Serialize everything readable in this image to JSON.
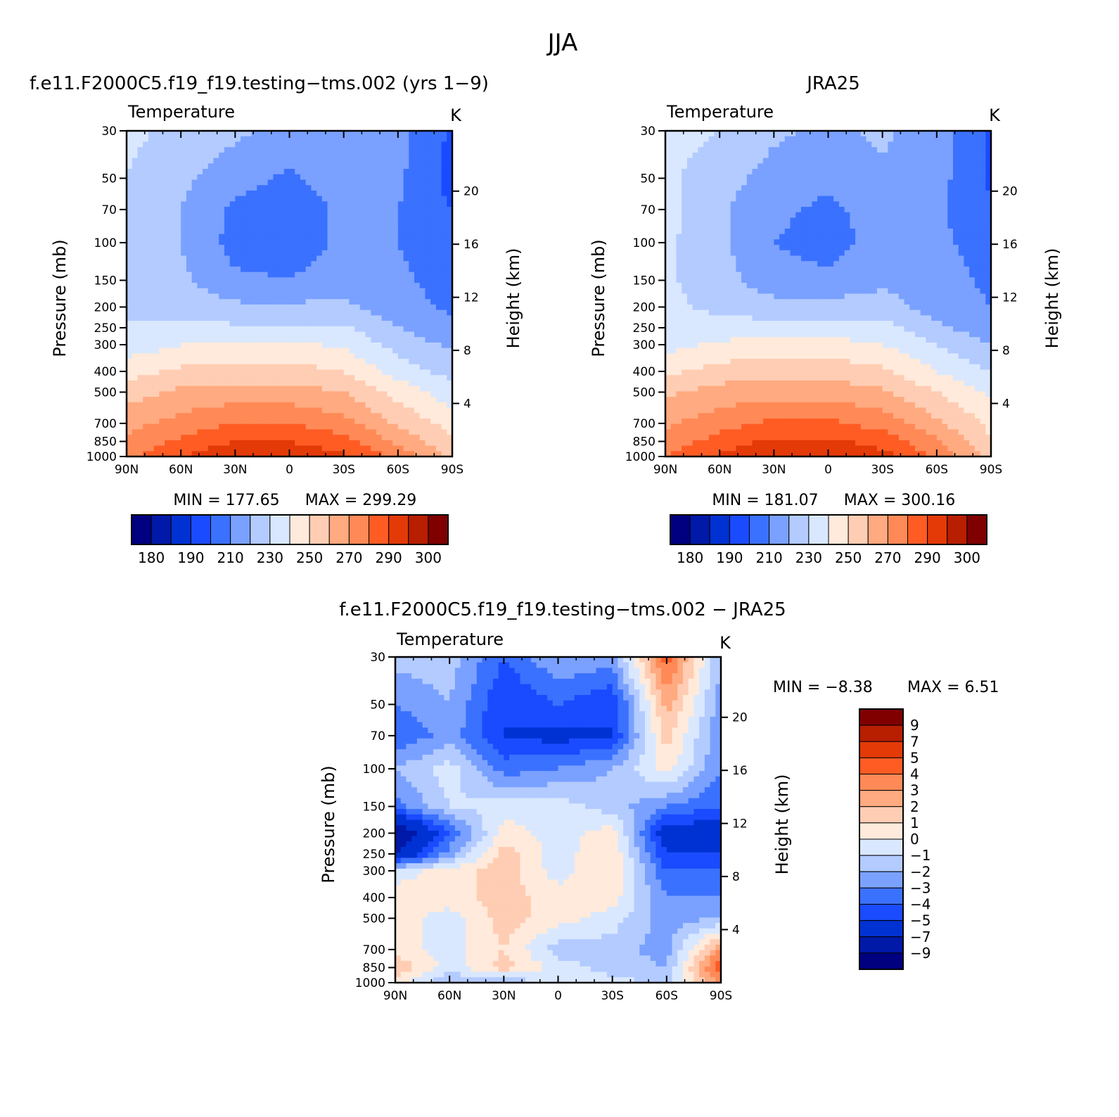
{
  "title": "JJA",
  "colors": {
    "temperature_levels": [
      "#000080",
      "#0019a8",
      "#0032d3",
      "#1a4bff",
      "#3b71ff",
      "#7aa1ff",
      "#b3cbff",
      "#d9e8ff",
      "#ffeadb",
      "#ffcdb3",
      "#ffaa80",
      "#ff8a57",
      "#ff5c24",
      "#e33a08",
      "#b81e00",
      "#800000"
    ],
    "difference_levels": [
      "#000080",
      "#0019a8",
      "#0032d3",
      "#1a4bff",
      "#3b71ff",
      "#7aa1ff",
      "#b3cbff",
      "#d9e8ff",
      "#ffeadb",
      "#ffcdb3",
      "#ffaa80",
      "#ff8a57",
      "#ff5c24",
      "#e33a08",
      "#b81e00",
      "#800000"
    ]
  },
  "chart_data": [
    {
      "type": "heatmap",
      "title": "f.e11.F2000C5.f19_f19.testing−tms.002 (yrs 1−9)",
      "left_string": "Temperature",
      "units": "K",
      "ylabel": "Pressure (mb)",
      "ylabel_right": "Height (km)",
      "x_ticks": [
        "90N",
        "60N",
        "30N",
        "0",
        "30S",
        "60S",
        "90S"
      ],
      "y_ticks": [
        "30",
        "50",
        "70",
        "100",
        "150",
        "200",
        "250",
        "300",
        "400",
        "500",
        "700",
        "850",
        "1000"
      ],
      "y_ticks_right": [
        "20",
        "16",
        "12",
        "8",
        "4"
      ],
      "x": [
        90,
        60,
        30,
        0,
        -30,
        -60,
        -90
      ],
      "y": [
        30,
        50,
        70,
        100,
        150,
        200,
        250,
        300,
        400,
        500,
        700,
        850,
        1000
      ],
      "z": [
        [
          232,
          228,
          222,
          216,
          220,
          214,
          198
        ],
        [
          230,
          222,
          214,
          208,
          216,
          212,
          196
        ],
        [
          230,
          220,
          208,
          204,
          212,
          210,
          200
        ],
        [
          230,
          220,
          206,
          204,
          212,
          210,
          204
        ],
        [
          230,
          222,
          212,
          210,
          216,
          212,
          206
        ],
        [
          230,
          226,
          222,
          222,
          222,
          214,
          208
        ],
        [
          230,
          232,
          232,
          232,
          232,
          220,
          212
        ],
        [
          234,
          240,
          242,
          242,
          238,
          226,
          218
        ],
        [
          246,
          252,
          254,
          254,
          250,
          236,
          226
        ],
        [
          256,
          262,
          264,
          264,
          260,
          246,
          234
        ],
        [
          266,
          274,
          280,
          280,
          274,
          258,
          246
        ],
        [
          272,
          282,
          290,
          290,
          284,
          268,
          252
        ],
        [
          278,
          290,
          298,
          298,
          292,
          276,
          258
        ]
      ],
      "min_label": "MIN = 177.65",
      "max_label": "MAX = 299.29",
      "colorbar_labels": [
        "180",
        "190",
        "210",
        "230",
        "250",
        "270",
        "290",
        "300"
      ]
    },
    {
      "type": "heatmap",
      "title": "JRA25",
      "left_string": "Temperature",
      "units": "K",
      "ylabel": "Pressure (mb)",
      "ylabel_right": "Height (km)",
      "x_ticks": [
        "90N",
        "60N",
        "30N",
        "0",
        "30S",
        "60S",
        "90S"
      ],
      "y_ticks": [
        "30",
        "50",
        "70",
        "100",
        "150",
        "200",
        "250",
        "300",
        "400",
        "500",
        "700",
        "850",
        "1000"
      ],
      "y_ticks_right": [
        "20",
        "16",
        "12",
        "8",
        "4"
      ],
      "x": [
        90,
        60,
        30,
        0,
        -30,
        -60,
        -90
      ],
      "y": [
        30,
        50,
        70,
        100,
        150,
        200,
        250,
        300,
        400,
        500,
        700,
        850,
        1000
      ],
      "z": [
        [
          234,
          230,
          222,
          218,
          222,
          214,
          198
        ],
        [
          232,
          224,
          216,
          212,
          218,
          214,
          198
        ],
        [
          234,
          222,
          212,
          208,
          214,
          212,
          202
        ],
        [
          232,
          222,
          210,
          206,
          214,
          212,
          206
        ],
        [
          232,
          224,
          214,
          212,
          218,
          214,
          208
        ],
        [
          232,
          228,
          224,
          224,
          224,
          216,
          210
        ],
        [
          232,
          234,
          234,
          234,
          234,
          222,
          214
        ],
        [
          236,
          242,
          244,
          244,
          240,
          230,
          220
        ],
        [
          248,
          254,
          256,
          256,
          252,
          240,
          230
        ],
        [
          258,
          264,
          266,
          266,
          262,
          250,
          238
        ],
        [
          268,
          276,
          282,
          282,
          276,
          262,
          248
        ],
        [
          274,
          284,
          292,
          292,
          286,
          272,
          250
        ],
        [
          280,
          292,
          300,
          300,
          294,
          278,
          256
        ]
      ],
      "min_label": "MIN = 181.07",
      "max_label": "MAX = 300.16",
      "colorbar_labels": [
        "180",
        "190",
        "210",
        "230",
        "250",
        "270",
        "290",
        "300"
      ]
    },
    {
      "type": "heatmap",
      "title": "f.e11.F2000C5.f19_f19.testing−tms.002 − JRA25",
      "left_string": "Temperature",
      "units": "K",
      "ylabel": "Pressure (mb)",
      "ylabel_right": "Height (km)",
      "x_ticks": [
        "90N",
        "60N",
        "30N",
        "0",
        "30S",
        "60S",
        "90S"
      ],
      "y_ticks": [
        "30",
        "50",
        "70",
        "100",
        "150",
        "200",
        "250",
        "300",
        "400",
        "500",
        "700",
        "850",
        "1000"
      ],
      "y_ticks_right": [
        "20",
        "16",
        "12",
        "8",
        "4"
      ],
      "x": [
        90,
        60,
        30,
        0,
        -30,
        -60,
        -90
      ],
      "y": [
        30,
        50,
        70,
        100,
        150,
        200,
        250,
        300,
        400,
        500,
        700,
        850,
        1000
      ],
      "z": [
        [
          -1.5,
          -1.5,
          -4,
          -2,
          -2.5,
          4.5,
          -2
        ],
        [
          -3,
          -2,
          -5,
          -4,
          -5,
          2.5,
          -2.5
        ],
        [
          -4,
          -2.5,
          -5,
          -5.5,
          -5,
          1.5,
          -3
        ],
        [
          -2,
          -0.5,
          -3.5,
          -3,
          -2,
          0.5,
          -3
        ],
        [
          -3.5,
          -1,
          -0.5,
          -0.5,
          -1.5,
          -3,
          -4
        ],
        [
          -9,
          -4,
          0.5,
          -0.5,
          0.5,
          -6,
          -6
        ],
        [
          -7,
          -2.5,
          1.5,
          -0.5,
          1,
          -5,
          -5
        ],
        [
          -0.5,
          0.5,
          1.5,
          -0.5,
          1,
          -4,
          -4
        ],
        [
          0.5,
          0.5,
          1.5,
          0.5,
          0.5,
          -3,
          -3
        ],
        [
          0.5,
          -0.5,
          1.5,
          0.5,
          -0.5,
          -2.5,
          -2
        ],
        [
          0.5,
          -0.5,
          1,
          -1.5,
          -1.5,
          -2.5,
          3
        ],
        [
          2,
          -0.5,
          1.5,
          -0.5,
          -1.5,
          -2,
          5
        ],
        [
          0.5,
          -2,
          -2,
          -0.5,
          -0.5,
          -1.5,
          3
        ]
      ],
      "min_label": "MIN =  −8.38",
      "max_label": "MAX =  6.51",
      "colorbar_labels": [
        "9",
        "7",
        "5",
        "4",
        "3",
        "2",
        "1",
        "0",
        "−1",
        "−2",
        "−3",
        "−4",
        "−5",
        "−7",
        "−9"
      ]
    }
  ]
}
